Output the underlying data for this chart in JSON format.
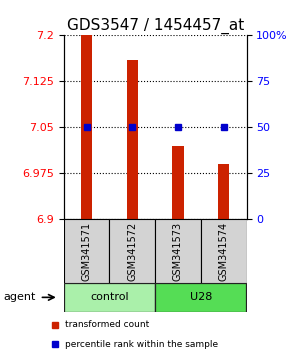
{
  "title": "GDS3547 / 1454457_at",
  "samples": [
    "GSM341571",
    "GSM341572",
    "GSM341573",
    "GSM341574"
  ],
  "bar_values": [
    7.2,
    7.16,
    7.02,
    6.99
  ],
  "percentile_values": [
    50,
    50,
    50,
    50
  ],
  "bar_bottom": 6.9,
  "bar_color": "#cc2200",
  "percentile_color": "#0000cc",
  "ylim_left": [
    6.9,
    7.2
  ],
  "ylim_right": [
    0,
    100
  ],
  "yticks_left": [
    6.9,
    6.975,
    7.05,
    7.125,
    7.2
  ],
  "yticks_right": [
    0,
    25,
    50,
    75,
    100
  ],
  "ytick_labels_left": [
    "6.9",
    "6.975",
    "7.05",
    "7.125",
    "7.2"
  ],
  "ytick_labels_right": [
    "0",
    "25",
    "50",
    "75",
    "100%"
  ],
  "groups": [
    {
      "label": "control",
      "indices": [
        0,
        1
      ],
      "color": "#aaf0aa"
    },
    {
      "label": "U28",
      "indices": [
        2,
        3
      ],
      "color": "#55dd55"
    }
  ],
  "agent_label": "agent",
  "legend": [
    {
      "label": "transformed count",
      "color": "#cc2200",
      "marker": "s"
    },
    {
      "label": "percentile rank within the sample",
      "color": "#0000cc",
      "marker": "s"
    }
  ],
  "background_color": "#ffffff",
  "title_fontsize": 11,
  "tick_fontsize": 8,
  "bar_width": 0.25
}
